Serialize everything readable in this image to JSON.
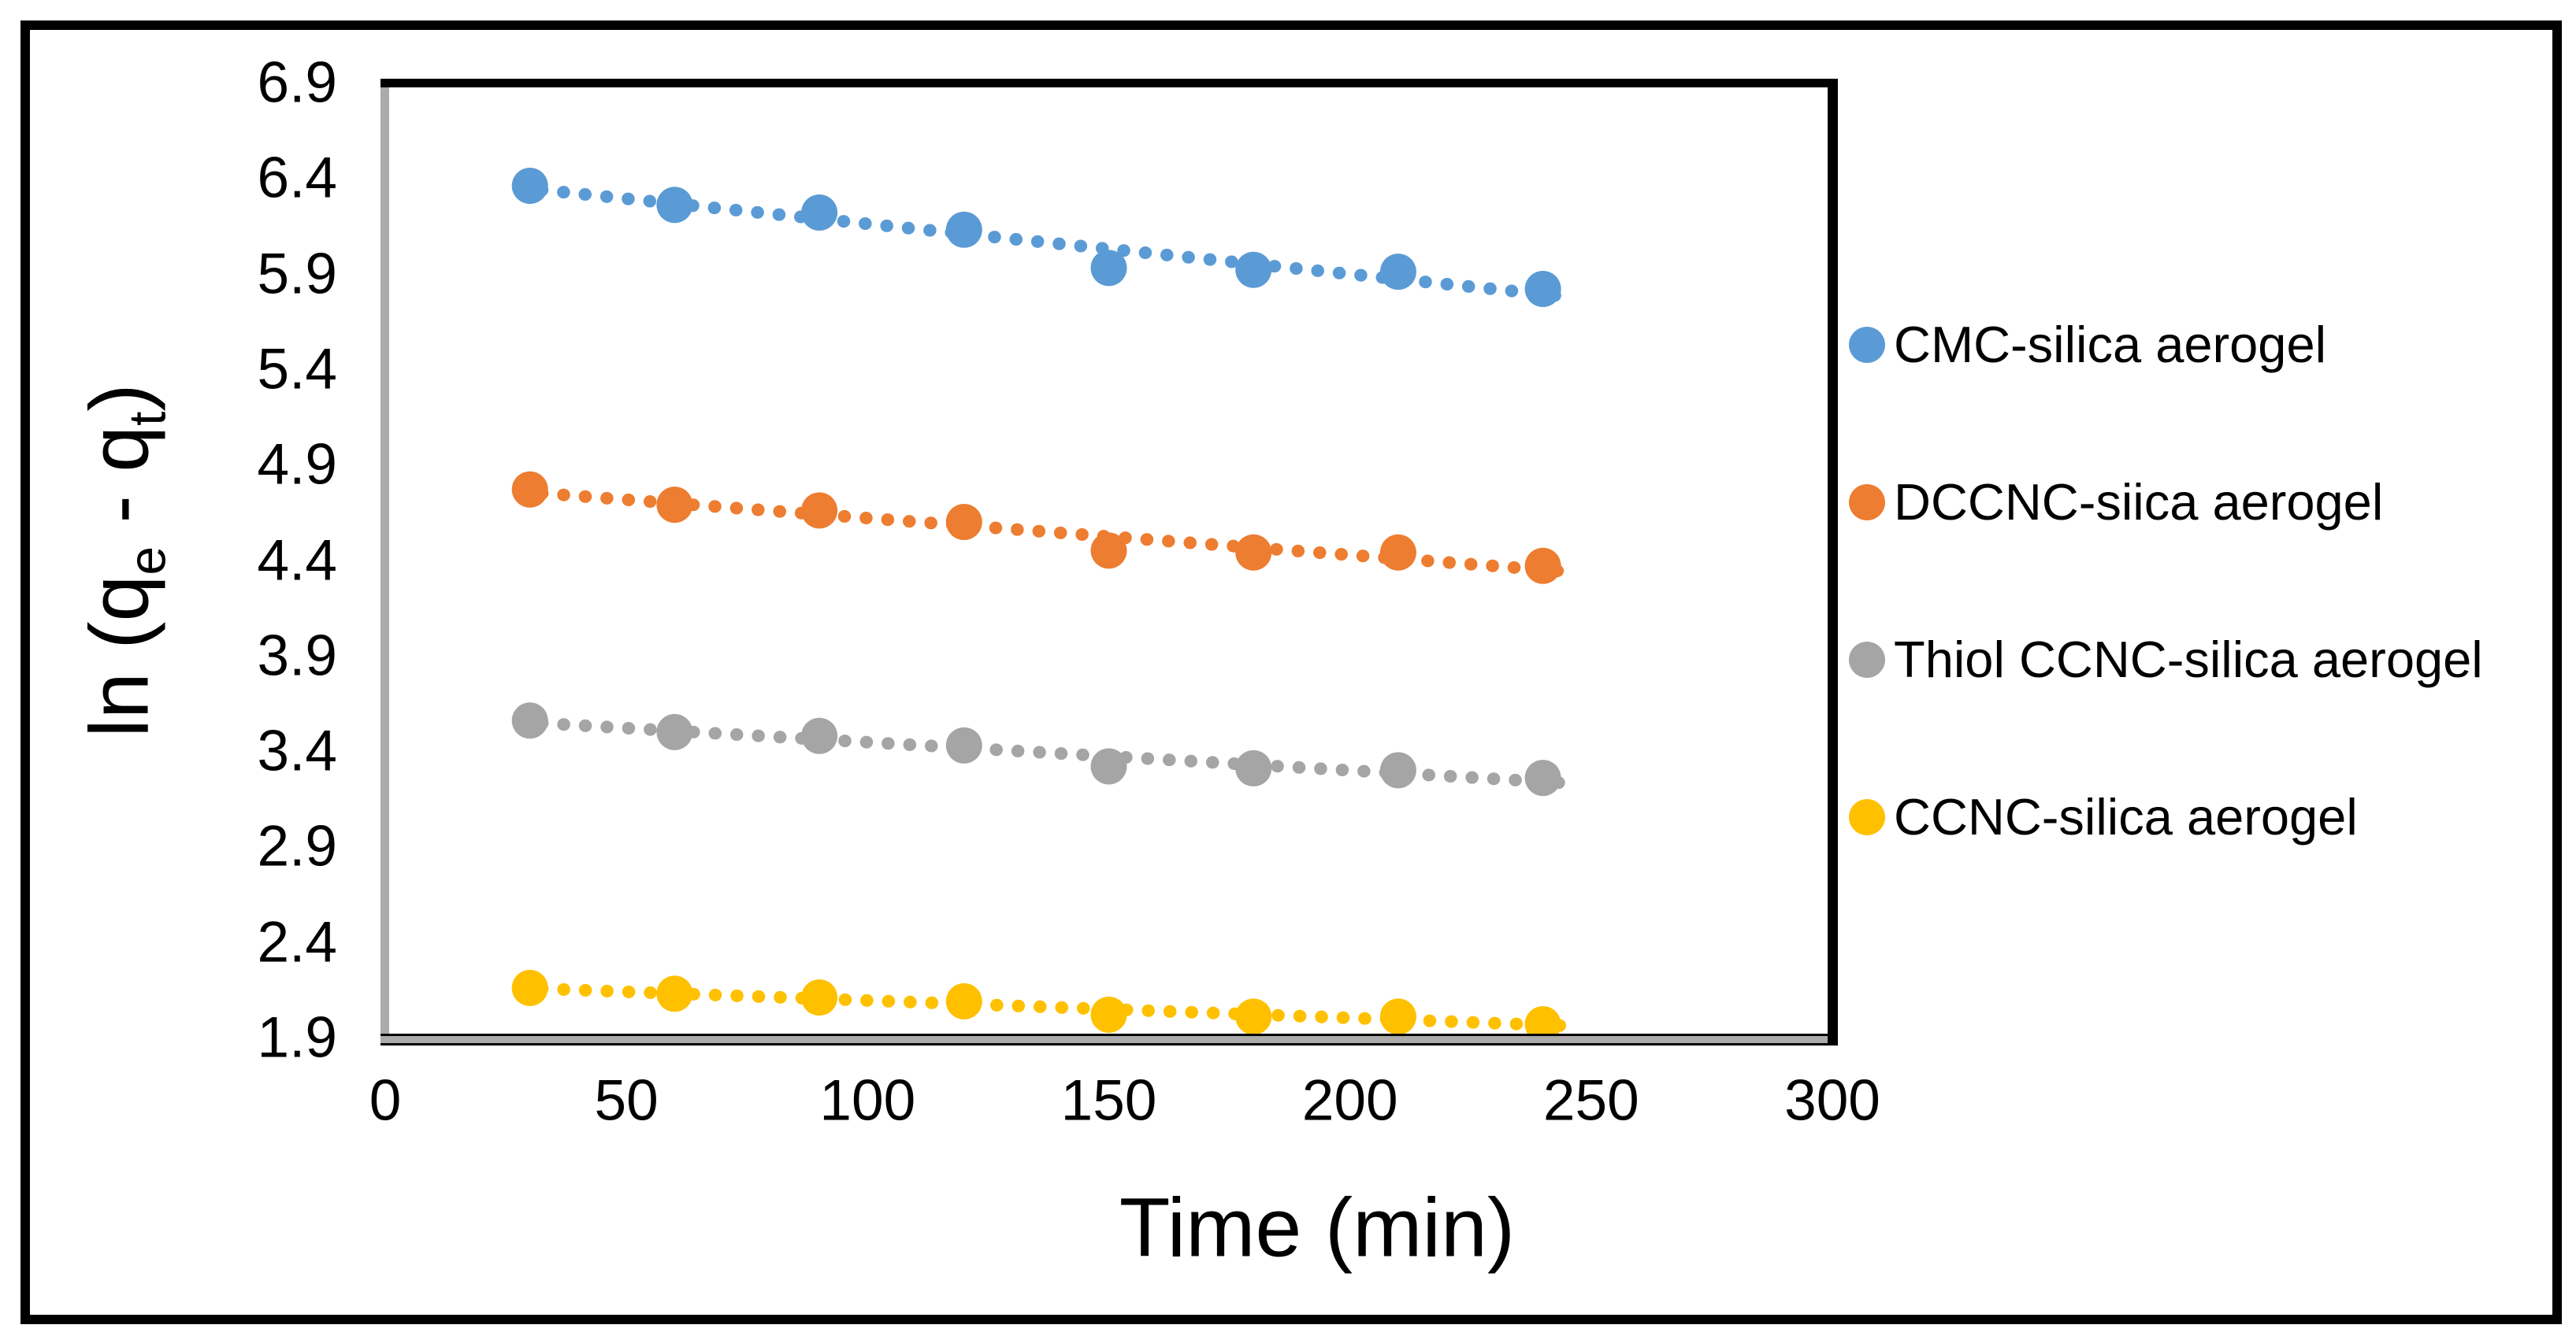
{
  "figure": {
    "background": "#ffffff",
    "frame_color": "#000000",
    "axis_line_gray": "#ABABAB",
    "axis_line_black": "#000000"
  },
  "chart_data": {
    "type": "scatter",
    "title": "",
    "xlabel": "Time (min)",
    "ylabel": "ln (qe - qt)",
    "ylabel_segments": [
      {
        "text": "ln (q"
      },
      {
        "subscript": "e"
      },
      {
        "text": " - q"
      },
      {
        "subscript": "t"
      },
      {
        "text": ")"
      }
    ],
    "x_ticks": [
      "0",
      "50",
      "100",
      "150",
      "200",
      "250",
      "300"
    ],
    "x_tick_values": [
      0,
      50,
      100,
      150,
      200,
      250,
      300
    ],
    "y_ticks": [
      "6.9",
      "6.4",
      "5.9",
      "5.4",
      "4.9",
      "4.4",
      "3.9",
      "3.4",
      "2.9",
      "2.4",
      "1.9"
    ],
    "y_tick_values": [
      6.9,
      6.4,
      5.9,
      5.4,
      4.9,
      4.4,
      3.9,
      3.4,
      2.9,
      2.4,
      1.9
    ],
    "xlim": [
      0,
      300
    ],
    "ylim": [
      1.9,
      6.9
    ],
    "grid": false,
    "legend_position": "right",
    "marker": "circle",
    "trendline": "dotted-linear",
    "x": [
      30,
      60,
      90,
      120,
      150,
      180,
      210,
      240
    ],
    "series": [
      {
        "name": "CMC-silica aerogel",
        "color": "#5B9BD5",
        "values": [
          6.36,
          6.26,
          6.22,
          6.13,
          5.93,
          5.92,
          5.91,
          5.82
        ]
      },
      {
        "name": "DCCNC-siica aerogel",
        "color": "#ED7D31",
        "values": [
          4.77,
          4.69,
          4.66,
          4.6,
          4.45,
          4.44,
          4.44,
          4.37
        ]
      },
      {
        "name": "Thiol CCNC-silica aerogel",
        "color": "#A5A5A5",
        "values": [
          3.56,
          3.5,
          3.48,
          3.43,
          3.32,
          3.31,
          3.3,
          3.26
        ]
      },
      {
        "name": "CCNC-silica aerogel",
        "color": "#FFC000",
        "values": [
          2.16,
          2.13,
          2.11,
          2.09,
          2.02,
          2.01,
          2.01,
          1.97
        ]
      }
    ]
  }
}
